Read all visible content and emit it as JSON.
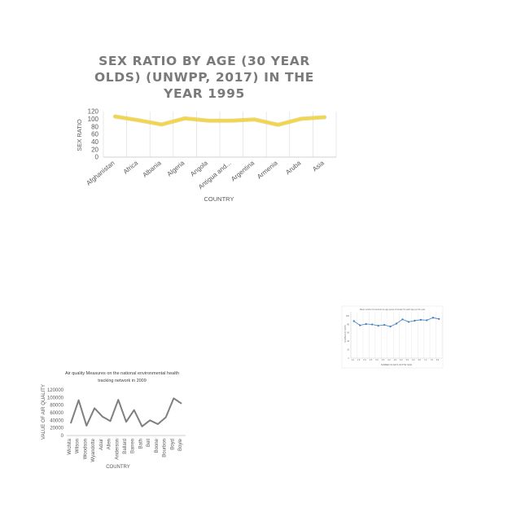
{
  "chart_data": [
    {
      "type": "line",
      "title_lines": [
        "SEX RATIO BY AGE (30 YEAR",
        "OLDS) (UNWPP, 2017) IN THE",
        "YEAR 1995"
      ],
      "xlabel": "COUNTRY",
      "ylabel": "SEX RATIO",
      "categories": [
        "Afghanistan",
        "Africa",
        "Albania",
        "Algeria",
        "Angola",
        "Antigua and...",
        "Argentina",
        "Armenia",
        "Aruba",
        "Asia"
      ],
      "series": [
        {
          "values": [
            107,
            97,
            86,
            102,
            96,
            96,
            99,
            85,
            101,
            105
          ],
          "color": "#f2d649"
        }
      ],
      "yticks": [
        "0",
        "20",
        "40",
        "60",
        "80",
        "100",
        "120"
      ],
      "ylim": [
        0,
        120
      ],
      "grid": "vertical"
    },
    {
      "type": "line",
      "title_lines": [
        "Air quality Measures on the national environmental health",
        "tracking network in 2009"
      ],
      "xlabel": "COUNTRY",
      "ylabel": "VALUE OF AIR QUALITY",
      "categories": [
        "Wichita",
        "Wilson",
        "Woodson",
        "Wyandotte",
        "Adair",
        "Allen",
        "Anderson",
        "Ballard",
        "Barren",
        "Bath",
        "Bell",
        "Boone",
        "Bourbon",
        "Boyd",
        "Boyle"
      ],
      "series": [
        {
          "values": [
            32000,
            93000,
            26000,
            72000,
            50000,
            38000,
            94000,
            36000,
            67000,
            24000,
            40000,
            30000,
            48000,
            98000,
            84000
          ],
          "color": "#7f7f7f"
        }
      ],
      "yticks": [
        "0",
        "20000",
        "40000",
        "60000",
        "80000",
        "100000",
        "120000"
      ],
      "ylim": [
        0,
        120000
      ],
      "grid": "none"
    },
    {
      "type": "line",
      "title_lines": [
        "Mean number of survivors by age group of female for each Age per the year"
      ],
      "xlabel": "NUMBER OF DAYS ON THE YEAR",
      "ylabel": "NUMBER OF DAYS",
      "categories": [
        "1.0",
        "1.5",
        "2.0",
        "2.5",
        "3.0",
        "3.5",
        "4.0",
        "4.5",
        "5.0",
        "5.5",
        "6.0",
        "6.5",
        "7.0",
        "7.5",
        "8.0"
      ],
      "series": [
        {
          "values": [
            88,
            78,
            81,
            80,
            77,
            79,
            75,
            82,
            92,
            86,
            89,
            91,
            90,
            96,
            93
          ],
          "color": "#3d7bbf"
        }
      ],
      "yticks": [
        "0",
        "20",
        "40",
        "60",
        "80",
        "100"
      ],
      "ylim": [
        0,
        110
      ],
      "grid": "vertical"
    }
  ]
}
